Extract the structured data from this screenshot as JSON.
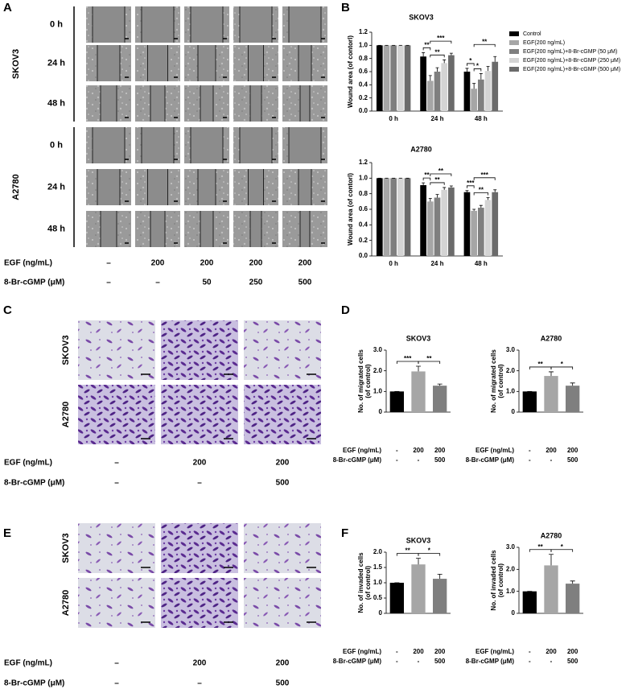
{
  "panel_labels": [
    "A",
    "B",
    "C",
    "D",
    "E",
    "F"
  ],
  "images": [
    {
      "groups": [
        {
          "name": "SKOV3",
          "rows": [
            "0 h",
            "24 h",
            "48 h"
          ]
        },
        {
          "name": "A2780",
          "rows": [
            "0 h",
            "24 h",
            "48 h"
          ]
        }
      ],
      "conditions": [
        {
          "label": "EGF (ng/mL)",
          "values": [
            "–",
            "200",
            "200",
            "200",
            "200"
          ]
        },
        {
          "label": "8-Br-cGMP (μM)",
          "values": [
            "–",
            "–",
            "50",
            "250",
            "500"
          ]
        }
      ]
    },
    {
      "rows": [
        "SKOV3",
        "A2780"
      ],
      "conditions": [
        {
          "label": "EGF (ng/mL)",
          "values": [
            "–",
            "200",
            "200"
          ]
        },
        {
          "label": "8-Br-cGMP (μM)",
          "values": [
            "–",
            "–",
            "500"
          ]
        }
      ]
    },
    {
      "rows": [
        "SKOV3",
        "A2780"
      ],
      "conditions": [
        {
          "label": "EGF (ng/mL)",
          "values": [
            "–",
            "200",
            "200"
          ]
        },
        {
          "label": "8-Br-cGMP (μM)",
          "values": [
            "–",
            "–",
            "500"
          ]
        }
      ]
    }
  ],
  "chart_data": [
    {
      "type": "grouped_bar",
      "title": "SKOV3",
      "y_label": "Wound area (of contorl)",
      "categories": [
        "0 h",
        "24 h",
        "48 h"
      ],
      "legend": "right",
      "ylim": [
        0,
        1.2
      ],
      "yticks": [
        {
          "value": 0,
          "label": "0.0"
        },
        0.2,
        0.4,
        0.6,
        0.8,
        {
          "value": 1,
          "label": "1.0"
        },
        1.2
      ],
      "series": [
        {
          "name": "Control",
          "color": "#000000",
          "values": [
            1,
            0.83,
            0.6
          ],
          "errors": [
            0,
            0.06,
            0.05
          ]
        },
        {
          "name": "EGF(200 ng/mL)",
          "color": "#a6a6a6",
          "values": [
            1,
            0.46,
            0.34
          ],
          "errors": [
            0,
            0.08,
            0.08
          ]
        },
        {
          "name": "EGF(200 ng/mL)+8-Br-cGMP (50 μM)",
          "color": "#7f7f7f",
          "values": [
            1,
            0.6,
            0.48
          ],
          "errors": [
            0,
            0.06,
            0.09
          ]
        },
        {
          "name": "EGF(200 ng/mL)+8-Br-cGMP (250 μM)",
          "color": "#d4d4d4",
          "values": [
            1,
            0.73,
            0.61
          ],
          "errors": [
            0,
            0.05,
            0.07
          ]
        },
        {
          "name": "EGF(200 ng/mL)+8-Br-cGMP (500 μM)",
          "color": "#6b6b6b",
          "values": [
            1,
            0.85,
            0.75
          ],
          "errors": [
            0,
            0.03,
            0.08
          ]
        }
      ],
      "annotations": [
        "**",
        "***",
        "**",
        "*",
        "*",
        "**"
      ]
    },
    {
      "type": "grouped_bar",
      "title": "A2780",
      "y_label": "Wound area (of contorl)",
      "categories": [
        "0 h",
        "24 h",
        "48 h"
      ],
      "ylim": [
        0,
        1.2
      ],
      "yticks": [
        {
          "value": 0,
          "label": "0.0"
        },
        0.2,
        0.4,
        0.6,
        0.8,
        {
          "value": 1,
          "label": "1.0"
        },
        1.2
      ],
      "series": [
        {
          "color": "#000000",
          "values": [
            1,
            0.91,
            0.82
          ],
          "errors": [
            0,
            0.03,
            0.02
          ]
        },
        {
          "color": "#a6a6a6",
          "values": [
            1,
            0.7,
            0.58
          ],
          "errors": [
            0,
            0.04,
            0.02
          ]
        },
        {
          "color": "#7f7f7f",
          "values": [
            1,
            0.75,
            0.62
          ],
          "errors": [
            0,
            0.04,
            0.03
          ]
        },
        {
          "color": "#d4d4d4",
          "values": [
            1,
            0.85,
            0.72
          ],
          "errors": [
            0,
            0.03,
            0.03
          ]
        },
        {
          "color": "#6b6b6b",
          "values": [
            1,
            0.88,
            0.82
          ],
          "errors": [
            0,
            0.02,
            0.03
          ]
        }
      ],
      "annotations": [
        "**",
        "**",
        "**",
        "***",
        "***",
        "**"
      ]
    },
    {
      "type": "bar",
      "title": "SKOV3",
      "y_label": [
        "No. of migrated cells",
        "(of control)"
      ],
      "ylim": [
        0,
        3
      ],
      "yticks": [
        0,
        {
          "value": 1,
          "label": "1.0"
        },
        {
          "value": 2,
          "label": "2.0"
        },
        {
          "value": 3,
          "label": "3.0"
        }
      ],
      "values": [
        1,
        1.97,
        1.28
      ],
      "errors": [
        0,
        0.25,
        0.08
      ],
      "colors": [
        "#000000",
        "#a6a6a6",
        "#7f7f7f"
      ],
      "conditions": [
        {
          "label": "EGF (ng/mL)",
          "values": [
            "-",
            "200",
            "200"
          ]
        },
        {
          "label": "8-Br-cGMP (μM)",
          "values": [
            "-",
            "-",
            "500"
          ]
        }
      ],
      "annotations": [
        "***",
        "**"
      ]
    },
    {
      "type": "bar",
      "title": "A2780",
      "y_label": [
        "No. of migrated cells",
        "(of control)"
      ],
      "ylim": [
        0,
        3
      ],
      "yticks": [
        0,
        {
          "value": 1,
          "label": "1.0"
        },
        {
          "value": 2,
          "label": "2.0"
        },
        {
          "value": 3,
          "label": "3.0"
        }
      ],
      "values": [
        1,
        1.75,
        1.28
      ],
      "errors": [
        0,
        0.2,
        0.13
      ],
      "colors": [
        "#000000",
        "#a6a6a6",
        "#7f7f7f"
      ],
      "conditions": [
        {
          "label": "EGF (ng/mL)",
          "values": [
            "-",
            "200",
            "200"
          ]
        },
        {
          "label": "8-Br-cGMP (μM)",
          "values": [
            "-",
            "-",
            "500"
          ]
        }
      ],
      "annotations": [
        "**",
        "*"
      ]
    },
    {
      "type": "bar",
      "title": "SKOV3",
      "y_label": [
        "No. of invaded cells",
        "(of control)"
      ],
      "ylim": [
        0,
        2
      ],
      "yticks": [
        0,
        0.5,
        {
          "value": 1,
          "label": "1.0"
        },
        1.5,
        {
          "value": 2,
          "label": "2.0"
        }
      ],
      "values": [
        1,
        1.6,
        1.13
      ],
      "errors": [
        0,
        0.2,
        0.15
      ],
      "colors": [
        "#000000",
        "#a6a6a6",
        "#7f7f7f"
      ],
      "conditions": [
        {
          "label": "EGF (ng/mL)",
          "values": [
            "-",
            "200",
            "200"
          ]
        },
        {
          "label": "8-Br-cGMP (μM)",
          "values": [
            "-",
            "-",
            "500"
          ]
        }
      ],
      "annotations": [
        "**",
        "*"
      ]
    },
    {
      "type": "bar",
      "title": "A2780",
      "y_label": [
        "No. of invaded cells",
        "(of control)"
      ],
      "ylim": [
        0,
        3
      ],
      "yticks": [
        0,
        {
          "value": 1,
          "label": "1.0"
        },
        {
          "value": 2,
          "label": "2.0"
        },
        {
          "value": 3,
          "label": "3.0"
        }
      ],
      "values": [
        1,
        2.18,
        1.35
      ],
      "errors": [
        0,
        0.5,
        0.12
      ],
      "colors": [
        "#000000",
        "#a6a6a6",
        "#7f7f7f"
      ],
      "conditions": [
        {
          "label": "EGF (ng/mL)",
          "values": [
            "-",
            "200",
            "200"
          ]
        },
        {
          "label": "8-Br-cGMP (μM)",
          "values": [
            "-",
            "-",
            "500"
          ]
        }
      ],
      "annotations": [
        "**",
        "*"
      ]
    }
  ]
}
